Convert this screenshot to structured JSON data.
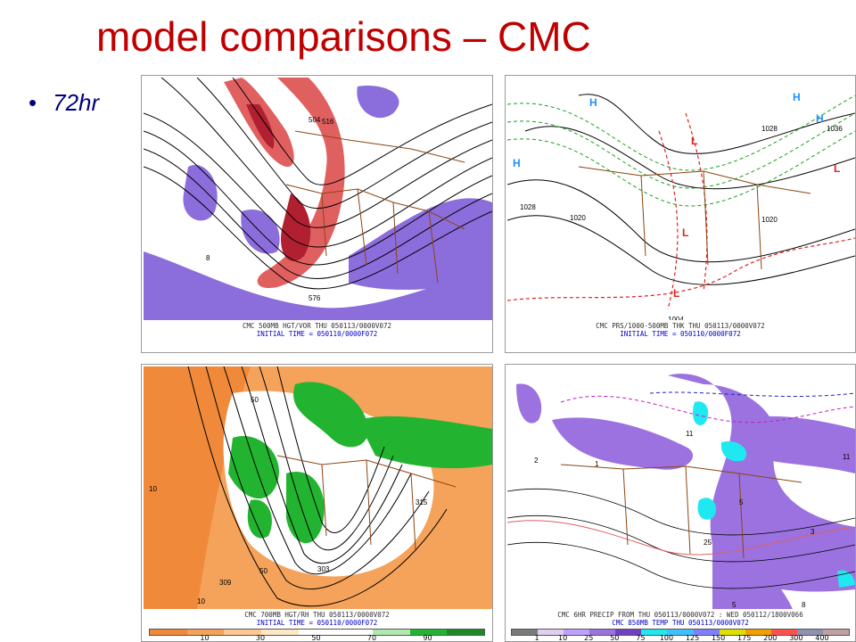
{
  "slide": {
    "title": "model comparisons – CMC",
    "bullet": "72hr"
  },
  "panels": {
    "top_left": {
      "line1": "CMC 500MB HGT/VOR THU 050113/0000V072",
      "line2": "INITIAL TIME = 050110/0000F072",
      "contour_labels": [
        "504",
        "516",
        "576",
        "8"
      ]
    },
    "top_right": {
      "line1": "CMC PRS/1000-500MB THK THU 050113/0000V072",
      "line2": "INITIAL TIME = 050110/0000F072",
      "pressure_labels": [
        "1028",
        "1020",
        "1004",
        "1028",
        "1036",
        "1020"
      ],
      "center_markers": [
        "H",
        "H",
        "H",
        "H",
        "L",
        "L",
        "L",
        "L"
      ]
    },
    "bottom_left": {
      "line1": "CMC 700MB HGT/RH THU 050113/0000V072",
      "line2": "INITIAL TIME = 050110/0000F072",
      "contour_labels": [
        "10",
        "50",
        "309",
        "303",
        "315",
        "50",
        "10"
      ],
      "colorbar_ticks": [
        "10",
        "30",
        "50",
        "70",
        "90"
      ]
    },
    "bottom_right": {
      "line1": "CMC 6HR PRECIP FROM THU 050113/0000V072 : WED 050112/1800V066",
      "line2": "CMC 850MB TEMP THU 050113/0000V072",
      "contour_labels": [
        "2",
        "11",
        "5",
        "25",
        "3",
        "8",
        "5",
        "1",
        "11"
      ],
      "colorbar_ticks": [
        "1",
        "10",
        "25",
        "50",
        "75",
        "100",
        "125",
        "150",
        "175",
        "200",
        "300",
        "400"
      ]
    }
  },
  "colors": {
    "title": "#c00000",
    "bullet": "#000080",
    "vorticity_purple": "#8c6ddc",
    "vorticity_red": "#e06060",
    "rh_green": "#22b430",
    "rh_orange": "#f5a25a",
    "precip_purple": "#9b72e0",
    "precip_cyan": "#20e8f0",
    "borders": "#8b4513"
  },
  "colorbars": {
    "rh": [
      "#f08a3a",
      "#f5a25a",
      "#ffc890",
      "#ffe8c8",
      "#ffffff",
      "#ffffff",
      "#b0e8b0",
      "#22b430",
      "#1a8a26"
    ],
    "precip": [
      "#7a7a7a",
      "#e0d0f0",
      "#c0a0ff",
      "#9b72e0",
      "#7040c0",
      "#20e8f0",
      "#40c0ff",
      "#8080ff",
      "#e0e000",
      "#f0a000",
      "#ff5050",
      "#9090b0",
      "#c0a0a0"
    ]
  }
}
